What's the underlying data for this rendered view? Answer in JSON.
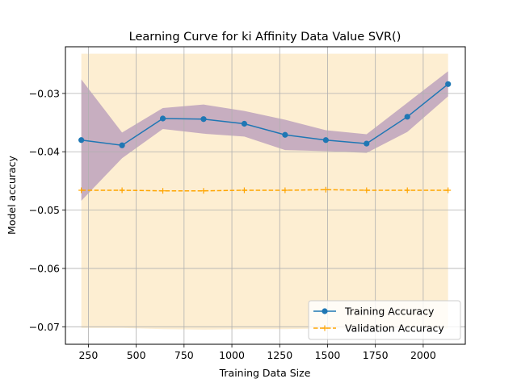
{
  "chart_data": {
    "type": "line",
    "title": "Learning Curve for ki Affinity Data Value SVR()",
    "xlabel": "Training Data Size",
    "ylabel": "Model accuracy",
    "xlim": [
      130,
      2220
    ],
    "ylim": [
      -0.073,
      -0.022
    ],
    "xticks": [
      250,
      500,
      750,
      1000,
      1250,
      1500,
      1750,
      2000
    ],
    "xtick_labels": [
      "250",
      "500",
      "750",
      "1000",
      "1250",
      "1500",
      "1750",
      "2000"
    ],
    "yticks": [
      -0.03,
      -0.04,
      -0.05,
      -0.06,
      -0.07
    ],
    "ytick_labels": [
      "−0.03",
      "−0.04",
      "−0.05",
      "−0.06",
      "−0.07"
    ],
    "grid": true,
    "legend_position": "lower-right",
    "x": [
      213,
      426,
      639,
      852,
      1065,
      1278,
      1491,
      1704,
      1917,
      2130
    ],
    "series": [
      {
        "name": "Training Accuracy",
        "color": "#1f77b4",
        "linestyle": "solid",
        "marker": "circle",
        "values": [
          -0.038,
          -0.0389,
          -0.0343,
          -0.0344,
          -0.0352,
          -0.0371,
          -0.038,
          -0.0386,
          -0.034,
          -0.0284
        ],
        "band_upper": [
          -0.0276,
          -0.0367,
          -0.0325,
          -0.0319,
          -0.033,
          -0.0345,
          -0.0363,
          -0.037,
          -0.0316,
          -0.0262
        ],
        "band_lower": [
          -0.0484,
          -0.0411,
          -0.0361,
          -0.0369,
          -0.0374,
          -0.0397,
          -0.0399,
          -0.0402,
          -0.0366,
          -0.0305
        ],
        "band_color": "#9a7ab0"
      },
      {
        "name": "Validation Accuracy",
        "color": "#ffa500",
        "linestyle": "dashed",
        "marker": "plus",
        "values": [
          -0.0466,
          -0.0466,
          -0.0467,
          -0.0467,
          -0.0466,
          -0.0466,
          -0.0465,
          -0.0466,
          -0.0466,
          -0.0466
        ],
        "band_upper": [
          -0.0232,
          -0.0232,
          -0.0232,
          -0.0232,
          -0.0232,
          -0.0232,
          -0.0232,
          -0.0232,
          -0.0232,
          -0.0232
        ],
        "band_lower": [
          -0.0702,
          -0.0702,
          -0.0704,
          -0.0705,
          -0.0704,
          -0.0704,
          -0.0703,
          -0.0703,
          -0.0703,
          -0.0703
        ],
        "band_color": "#fbe3b4"
      }
    ]
  }
}
